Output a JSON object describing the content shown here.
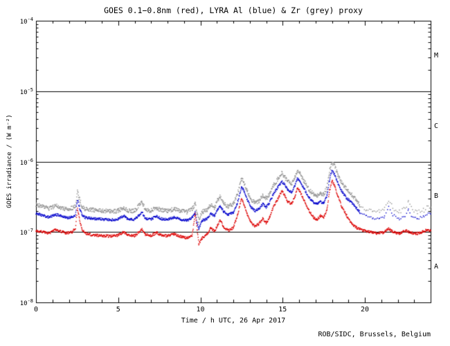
{
  "chart_data": {
    "type": "scatter",
    "title": "GOES 0.1−0.8nm (red), LYRA Al (blue) & Zr (grey) proxy",
    "xlabel": "Time / h UTC, 26 Apr 2017",
    "ylabel": "GOES irradiance / (W m⁻²)",
    "credit": "ROB/SIDC, Brussels, Belgium",
    "x_range": [
      0,
      24
    ],
    "x_major_ticks": [
      0,
      5,
      10,
      15,
      20
    ],
    "x_minor_step": 1,
    "y_log_range": [
      -8,
      -4
    ],
    "y_tick_exponents": [
      -4,
      -5,
      -6,
      -7,
      -8
    ],
    "hlines_log10": [
      -5,
      -6,
      -7
    ],
    "class_labels": [
      {
        "label": "M",
        "log10": -4.5
      },
      {
        "label": "C",
        "log10": -5.5
      },
      {
        "label": "B",
        "log10": -6.5
      },
      {
        "label": "A",
        "log10": -7.5
      }
    ],
    "colors": {
      "goes": "#dd0000",
      "al": "#0000cc",
      "zr": "#8f8f8f",
      "axis": "#000000",
      "background": "#ffffff"
    },
    "series": [
      {
        "name": "LYRA Zr proxy",
        "color_key": "zr",
        "sparse_from": 19.4,
        "noise": 0.06,
        "points": [
          [
            0,
            2.45e-07
          ],
          [
            0.4,
            2.3e-07
          ],
          [
            0.8,
            2.15e-07
          ],
          [
            1.2,
            2.35e-07
          ],
          [
            1.5,
            2.22e-07
          ],
          [
            1.9,
            2.1e-07
          ],
          [
            2.2,
            2.18e-07
          ],
          [
            2.4,
            2.3e-07
          ],
          [
            2.52,
            3.8e-07
          ],
          [
            2.65,
            2.9e-07
          ],
          [
            2.8,
            2.3e-07
          ],
          [
            3.0,
            2.12e-07
          ],
          [
            3.5,
            2.05e-07
          ],
          [
            4.0,
            2e-07
          ],
          [
            4.5,
            1.96e-07
          ],
          [
            5.0,
            2e-07
          ],
          [
            5.35,
            2.25e-07
          ],
          [
            5.55,
            2.02e-07
          ],
          [
            6.0,
            1.98e-07
          ],
          [
            6.45,
            2.7e-07
          ],
          [
            6.65,
            2.06e-07
          ],
          [
            7.0,
            2e-07
          ],
          [
            7.35,
            2.22e-07
          ],
          [
            7.6,
            2.04e-07
          ],
          [
            8.0,
            1.98e-07
          ],
          [
            8.4,
            2.14e-07
          ],
          [
            8.8,
            1.98e-07
          ],
          [
            9.2,
            1.92e-07
          ],
          [
            9.5,
            2.1e-07
          ],
          [
            9.68,
            2.5e-07
          ],
          [
            9.8,
            1.8e-07
          ],
          [
            9.9,
            1.45e-07
          ],
          [
            10.1,
            1.92e-07
          ],
          [
            10.4,
            2.05e-07
          ],
          [
            10.65,
            2.45e-07
          ],
          [
            10.85,
            2.2e-07
          ],
          [
            11.05,
            2.8e-07
          ],
          [
            11.2,
            3.2e-07
          ],
          [
            11.4,
            2.6e-07
          ],
          [
            11.7,
            2.3e-07
          ],
          [
            12.0,
            2.5e-07
          ],
          [
            12.25,
            3.4e-07
          ],
          [
            12.5,
            5.7e-07
          ],
          [
            12.65,
            5e-07
          ],
          [
            12.85,
            3.8e-07
          ],
          [
            13.05,
            3e-07
          ],
          [
            13.3,
            2.6e-07
          ],
          [
            13.55,
            2.75e-07
          ],
          [
            13.8,
            3.3e-07
          ],
          [
            14.0,
            3e-07
          ],
          [
            14.2,
            3.4e-07
          ],
          [
            14.45,
            4.6e-07
          ],
          [
            14.7,
            5.6e-07
          ],
          [
            14.95,
            6.8e-07
          ],
          [
            15.1,
            6.2e-07
          ],
          [
            15.3,
            5.2e-07
          ],
          [
            15.55,
            4.9e-07
          ],
          [
            15.75,
            6e-07
          ],
          [
            15.9,
            7.5e-07
          ],
          [
            16.05,
            6.9e-07
          ],
          [
            16.3,
            5.3e-07
          ],
          [
            16.6,
            4e-07
          ],
          [
            16.9,
            3.4e-07
          ],
          [
            17.1,
            3.3e-07
          ],
          [
            17.3,
            3.5e-07
          ],
          [
            17.5,
            3.4e-07
          ],
          [
            17.7,
            4.3e-07
          ],
          [
            17.85,
            7.2e-07
          ],
          [
            18.0,
            1e-06
          ],
          [
            18.15,
            8.7e-07
          ],
          [
            18.35,
            6.6e-07
          ],
          [
            18.6,
            5e-07
          ],
          [
            18.9,
            4e-07
          ],
          [
            19.15,
            3.5e-07
          ],
          [
            19.35,
            3.1e-07
          ],
          [
            19.7,
            2.4e-07
          ],
          [
            20.1,
            2.1e-07
          ],
          [
            20.5,
            1.95e-07
          ],
          [
            20.9,
            1.95e-07
          ],
          [
            21.2,
            2.1e-07
          ],
          [
            21.45,
            2.9e-07
          ],
          [
            21.7,
            2.2e-07
          ],
          [
            22.1,
            1.95e-07
          ],
          [
            22.45,
            2.15e-07
          ],
          [
            22.65,
            2.7e-07
          ],
          [
            22.9,
            2e-07
          ],
          [
            23.2,
            1.95e-07
          ],
          [
            23.6,
            2.05e-07
          ],
          [
            23.85,
            2.4e-07
          ],
          [
            24,
            2.25e-07
          ]
        ]
      },
      {
        "name": "LYRA Al proxy",
        "color_key": "al",
        "sparse_from": 19.4,
        "noise": 0.035,
        "points": [
          [
            0,
            1.85e-07
          ],
          [
            0.4,
            1.72e-07
          ],
          [
            0.8,
            1.62e-07
          ],
          [
            1.2,
            1.78e-07
          ],
          [
            1.5,
            1.68e-07
          ],
          [
            1.9,
            1.58e-07
          ],
          [
            2.2,
            1.64e-07
          ],
          [
            2.4,
            1.75e-07
          ],
          [
            2.52,
            2.9e-07
          ],
          [
            2.65,
            2.2e-07
          ],
          [
            2.8,
            1.75e-07
          ],
          [
            3.0,
            1.6e-07
          ],
          [
            3.5,
            1.55e-07
          ],
          [
            4.0,
            1.52e-07
          ],
          [
            4.5,
            1.48e-07
          ],
          [
            5.0,
            1.52e-07
          ],
          [
            5.35,
            1.7e-07
          ],
          [
            5.55,
            1.53e-07
          ],
          [
            6.0,
            1.5e-07
          ],
          [
            6.45,
            1.9e-07
          ],
          [
            6.65,
            1.56e-07
          ],
          [
            7.0,
            1.52e-07
          ],
          [
            7.35,
            1.68e-07
          ],
          [
            7.6,
            1.54e-07
          ],
          [
            8.0,
            1.5e-07
          ],
          [
            8.4,
            1.62e-07
          ],
          [
            8.8,
            1.5e-07
          ],
          [
            9.2,
            1.45e-07
          ],
          [
            9.5,
            1.6e-07
          ],
          [
            9.68,
            1.9e-07
          ],
          [
            9.8,
            1.35e-07
          ],
          [
            9.9,
            1.1e-07
          ],
          [
            10.1,
            1.45e-07
          ],
          [
            10.4,
            1.55e-07
          ],
          [
            10.65,
            1.85e-07
          ],
          [
            10.85,
            1.68e-07
          ],
          [
            11.05,
            2.1e-07
          ],
          [
            11.2,
            2.4e-07
          ],
          [
            11.4,
            1.95e-07
          ],
          [
            11.7,
            1.75e-07
          ],
          [
            12.0,
            1.9e-07
          ],
          [
            12.25,
            2.6e-07
          ],
          [
            12.5,
            4.4e-07
          ],
          [
            12.65,
            3.8e-07
          ],
          [
            12.85,
            2.9e-07
          ],
          [
            13.05,
            2.3e-07
          ],
          [
            13.3,
            2e-07
          ],
          [
            13.55,
            2.1e-07
          ],
          [
            13.8,
            2.5e-07
          ],
          [
            14.0,
            2.25e-07
          ],
          [
            14.2,
            2.6e-07
          ],
          [
            14.45,
            3.5e-07
          ],
          [
            14.7,
            4.3e-07
          ],
          [
            14.95,
            5.2e-07
          ],
          [
            15.1,
            4.8e-07
          ],
          [
            15.3,
            4e-07
          ],
          [
            15.55,
            3.7e-07
          ],
          [
            15.75,
            4.6e-07
          ],
          [
            15.9,
            5.8e-07
          ],
          [
            16.05,
            5.3e-07
          ],
          [
            16.3,
            4.1e-07
          ],
          [
            16.6,
            3.1e-07
          ],
          [
            16.9,
            2.6e-07
          ],
          [
            17.1,
            2.5e-07
          ],
          [
            17.3,
            2.7e-07
          ],
          [
            17.5,
            2.6e-07
          ],
          [
            17.7,
            3.3e-07
          ],
          [
            17.85,
            5.5e-07
          ],
          [
            18.0,
            7.5e-07
          ],
          [
            18.15,
            6.6e-07
          ],
          [
            18.35,
            5e-07
          ],
          [
            18.6,
            3.8e-07
          ],
          [
            18.9,
            3e-07
          ],
          [
            19.15,
            2.7e-07
          ],
          [
            19.35,
            2.4e-07
          ],
          [
            19.7,
            1.9e-07
          ],
          [
            20.1,
            1.65e-07
          ],
          [
            20.5,
            1.55e-07
          ],
          [
            20.9,
            1.55e-07
          ],
          [
            21.2,
            1.65e-07
          ],
          [
            21.45,
            2.3e-07
          ],
          [
            21.7,
            1.75e-07
          ],
          [
            22.1,
            1.55e-07
          ],
          [
            22.45,
            1.7e-07
          ],
          [
            22.65,
            2.1e-07
          ],
          [
            22.9,
            1.6e-07
          ],
          [
            23.2,
            1.55e-07
          ],
          [
            23.6,
            1.65e-07
          ],
          [
            23.85,
            1.9e-07
          ],
          [
            24,
            1.8e-07
          ]
        ]
      },
      {
        "name": "GOES 0.1-0.8nm",
        "color_key": "goes",
        "sparse_from": null,
        "noise": 0.035,
        "points": [
          [
            0,
            1.05e-07
          ],
          [
            0.4,
            1e-07
          ],
          [
            0.8,
            9.6e-08
          ],
          [
            1.2,
            1.08e-07
          ],
          [
            1.5,
            1.02e-07
          ],
          [
            1.9,
            9.6e-08
          ],
          [
            2.2,
            1e-07
          ],
          [
            2.4,
            1.15e-07
          ],
          [
            2.52,
            2.2e-07
          ],
          [
            2.65,
            1.5e-07
          ],
          [
            2.8,
            1.1e-07
          ],
          [
            3.0,
            9.5e-08
          ],
          [
            3.5,
            9e-08
          ],
          [
            4.0,
            8.9e-08
          ],
          [
            4.5,
            8.7e-08
          ],
          [
            5.0,
            9e-08
          ],
          [
            5.35,
            1e-07
          ],
          [
            5.55,
            9e-08
          ],
          [
            6.0,
            8.8e-08
          ],
          [
            6.45,
            1.08e-07
          ],
          [
            6.65,
            9.2e-08
          ],
          [
            7.0,
            8.9e-08
          ],
          [
            7.35,
            9.8e-08
          ],
          [
            7.6,
            9e-08
          ],
          [
            8.0,
            8.8e-08
          ],
          [
            8.4,
            9.4e-08
          ],
          [
            8.8,
            8.6e-08
          ],
          [
            9.2,
            8.2e-08
          ],
          [
            9.5,
            9e-08
          ],
          [
            9.68,
            1.8e-07
          ],
          [
            9.8,
            1.1e-07
          ],
          [
            9.9,
            6.8e-08
          ],
          [
            10.1,
            8.2e-08
          ],
          [
            10.4,
            9.2e-08
          ],
          [
            10.65,
            1.15e-07
          ],
          [
            10.85,
            1.02e-07
          ],
          [
            11.05,
            1.25e-07
          ],
          [
            11.2,
            1.5e-07
          ],
          [
            11.4,
            1.18e-07
          ],
          [
            11.7,
            1.05e-07
          ],
          [
            12.0,
            1.15e-07
          ],
          [
            12.25,
            1.7e-07
          ],
          [
            12.5,
            3e-07
          ],
          [
            12.65,
            2.5e-07
          ],
          [
            12.85,
            1.8e-07
          ],
          [
            13.05,
            1.4e-07
          ],
          [
            13.3,
            1.2e-07
          ],
          [
            13.55,
            1.3e-07
          ],
          [
            13.8,
            1.55e-07
          ],
          [
            14.0,
            1.35e-07
          ],
          [
            14.2,
            1.6e-07
          ],
          [
            14.45,
            2.3e-07
          ],
          [
            14.7,
            2.9e-07
          ],
          [
            14.95,
            3.8e-07
          ],
          [
            15.1,
            3.4e-07
          ],
          [
            15.3,
            2.7e-07
          ],
          [
            15.55,
            2.5e-07
          ],
          [
            15.75,
            3.2e-07
          ],
          [
            15.9,
            4.2e-07
          ],
          [
            16.05,
            3.8e-07
          ],
          [
            16.3,
            2.8e-07
          ],
          [
            16.6,
            2e-07
          ],
          [
            16.9,
            1.6e-07
          ],
          [
            17.1,
            1.5e-07
          ],
          [
            17.3,
            1.7e-07
          ],
          [
            17.5,
            1.6e-07
          ],
          [
            17.7,
            2.1e-07
          ],
          [
            17.85,
            3.8e-07
          ],
          [
            18.0,
            5.4e-07
          ],
          [
            18.15,
            4.6e-07
          ],
          [
            18.35,
            3.3e-07
          ],
          [
            18.6,
            2.3e-07
          ],
          [
            18.9,
            1.7e-07
          ],
          [
            19.2,
            1.3e-07
          ],
          [
            19.5,
            1.15e-07
          ],
          [
            19.9,
            1.05e-07
          ],
          [
            20.3,
            1e-07
          ],
          [
            20.7,
            9.6e-08
          ],
          [
            21.1,
            9.8e-08
          ],
          [
            21.45,
            1.12e-07
          ],
          [
            21.7,
            1e-07
          ],
          [
            22.1,
            9.5e-08
          ],
          [
            22.5,
            1.05e-07
          ],
          [
            22.8,
            9.8e-08
          ],
          [
            23.1,
            9.4e-08
          ],
          [
            23.5,
            1e-07
          ],
          [
            23.8,
            1.08e-07
          ],
          [
            24,
            1.04e-07
          ]
        ]
      }
    ]
  }
}
